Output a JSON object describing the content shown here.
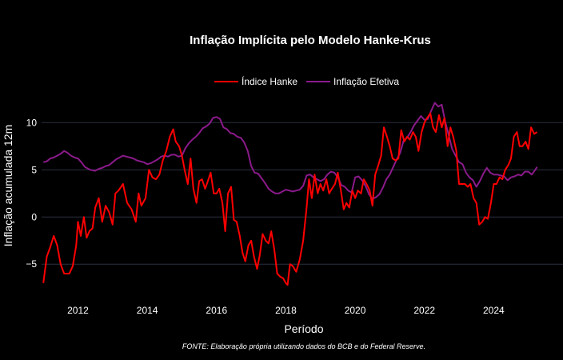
{
  "chart_data": {
    "type": "line",
    "title": "Inflação Implícita pelo Modelo Hanke-Krus",
    "xlabel": "Período",
    "ylabel": "Inflação acumulada  12m",
    "source_note": "FONTE: Elaboração própria utilizando dados do BCB e do Federal Reserve.",
    "xlim": [
      2010.95,
      2026.0
    ],
    "ylim": [
      -8.2,
      13.5
    ],
    "x_ticks": [
      2012,
      2014,
      2016,
      2018,
      2020,
      2022,
      2024
    ],
    "y_ticks": [
      -5,
      0,
      5,
      10
    ],
    "x_tick_labels": [
      "2012",
      "2014",
      "2016",
      "2018",
      "2020",
      "2022",
      "2024"
    ],
    "y_tick_labels": [
      "−5",
      "0",
      "5",
      "10"
    ],
    "grid": true,
    "legend_position": "top-center",
    "series": [
      {
        "name": "Índice Hanke",
        "color": "#ff0000",
        "points": [
          [
            2011.0,
            -7.0
          ],
          [
            2011.1,
            -4.2
          ],
          [
            2011.2,
            -3.2
          ],
          [
            2011.3,
            -2.0
          ],
          [
            2011.4,
            -3.0
          ],
          [
            2011.5,
            -5.0
          ],
          [
            2011.6,
            -6.0
          ],
          [
            2011.75,
            -6.0
          ],
          [
            2011.85,
            -5.2
          ],
          [
            2011.95,
            -3.0
          ],
          [
            2012.0,
            -0.5
          ],
          [
            2012.08,
            -2.0
          ],
          [
            2012.17,
            0.0
          ],
          [
            2012.25,
            -2.2
          ],
          [
            2012.33,
            -1.5
          ],
          [
            2012.42,
            -1.2
          ],
          [
            2012.5,
            1.0
          ],
          [
            2012.6,
            2.0
          ],
          [
            2012.7,
            -0.5
          ],
          [
            2012.8,
            1.2
          ],
          [
            2012.9,
            0.5
          ],
          [
            2013.0,
            -0.8
          ],
          [
            2013.08,
            2.5
          ],
          [
            2013.17,
            2.8
          ],
          [
            2013.3,
            3.5
          ],
          [
            2013.42,
            1.5
          ],
          [
            2013.55,
            0.8
          ],
          [
            2013.67,
            -0.5
          ],
          [
            2013.75,
            2.5
          ],
          [
            2013.83,
            1.2
          ],
          [
            2013.95,
            2.0
          ],
          [
            2014.05,
            5.0
          ],
          [
            2014.15,
            4.2
          ],
          [
            2014.25,
            4.0
          ],
          [
            2014.35,
            4.5
          ],
          [
            2014.45,
            6.0
          ],
          [
            2014.55,
            7.0
          ],
          [
            2014.65,
            8.5
          ],
          [
            2014.75,
            9.3
          ],
          [
            2014.82,
            8.0
          ],
          [
            2014.92,
            7.5
          ],
          [
            2015.0,
            6.5
          ],
          [
            2015.08,
            5.0
          ],
          [
            2015.17,
            3.5
          ],
          [
            2015.25,
            6.2
          ],
          [
            2015.33,
            3.0
          ],
          [
            2015.42,
            1.5
          ],
          [
            2015.5,
            3.8
          ],
          [
            2015.58,
            4.0
          ],
          [
            2015.67,
            3.0
          ],
          [
            2015.75,
            3.8
          ],
          [
            2015.83,
            4.7
          ],
          [
            2015.92,
            2.5
          ],
          [
            2016.0,
            2.5
          ],
          [
            2016.08,
            3.0
          ],
          [
            2016.17,
            1.5
          ],
          [
            2016.25,
            -1.5
          ],
          [
            2016.33,
            2.5
          ],
          [
            2016.42,
            3.2
          ],
          [
            2016.5,
            -0.3
          ],
          [
            2016.58,
            -0.5
          ],
          [
            2016.67,
            -2.0
          ],
          [
            2016.75,
            -3.8
          ],
          [
            2016.83,
            -4.7
          ],
          [
            2016.92,
            -3.0
          ],
          [
            2017.0,
            -2.5
          ],
          [
            2017.08,
            -4.2
          ],
          [
            2017.17,
            -5.5
          ],
          [
            2017.25,
            -4.0
          ],
          [
            2017.33,
            -1.8
          ],
          [
            2017.42,
            -2.5
          ],
          [
            2017.5,
            -2.8
          ],
          [
            2017.58,
            -1.5
          ],
          [
            2017.67,
            -3.5
          ],
          [
            2017.75,
            -6.0
          ],
          [
            2017.83,
            -6.3
          ],
          [
            2017.92,
            -6.5
          ],
          [
            2018.0,
            -7.0
          ],
          [
            2018.05,
            -7.2
          ],
          [
            2018.12,
            -5.0
          ],
          [
            2018.2,
            -5.2
          ],
          [
            2018.3,
            -5.8
          ],
          [
            2018.4,
            -4.5
          ],
          [
            2018.5,
            -2.5
          ],
          [
            2018.6,
            1.0
          ],
          [
            2018.67,
            4.0
          ],
          [
            2018.75,
            2.0
          ],
          [
            2018.83,
            4.5
          ],
          [
            2018.92,
            2.5
          ],
          [
            2019.0,
            3.5
          ],
          [
            2019.08,
            2.8
          ],
          [
            2019.17,
            4.0
          ],
          [
            2019.25,
            2.5
          ],
          [
            2019.33,
            3.0
          ],
          [
            2019.42,
            3.5
          ],
          [
            2019.5,
            4.7
          ],
          [
            2019.58,
            3.0
          ],
          [
            2019.67,
            0.8
          ],
          [
            2019.75,
            1.5
          ],
          [
            2019.83,
            1.0
          ],
          [
            2019.92,
            2.8
          ],
          [
            2020.0,
            2.0
          ],
          [
            2020.08,
            2.8
          ],
          [
            2020.17,
            2.5
          ],
          [
            2020.25,
            4.0
          ],
          [
            2020.33,
            3.5
          ],
          [
            2020.42,
            2.8
          ],
          [
            2020.5,
            1.2
          ],
          [
            2020.58,
            4.5
          ],
          [
            2020.67,
            5.5
          ],
          [
            2020.75,
            6.5
          ],
          [
            2020.83,
            9.5
          ],
          [
            2020.92,
            8.5
          ],
          [
            2021.0,
            7.5
          ],
          [
            2021.08,
            6.2
          ],
          [
            2021.17,
            6.0
          ],
          [
            2021.25,
            6.2
          ],
          [
            2021.33,
            9.2
          ],
          [
            2021.42,
            8.0
          ],
          [
            2021.5,
            8.5
          ],
          [
            2021.58,
            8.2
          ],
          [
            2021.67,
            9.0
          ],
          [
            2021.75,
            8.5
          ],
          [
            2021.83,
            7.0
          ],
          [
            2021.92,
            9.0
          ],
          [
            2022.0,
            10.0
          ],
          [
            2022.08,
            10.5
          ],
          [
            2022.17,
            11.0
          ],
          [
            2022.25,
            9.5
          ],
          [
            2022.33,
            9.0
          ],
          [
            2022.42,
            10.8
          ],
          [
            2022.5,
            9.5
          ],
          [
            2022.58,
            10.5
          ],
          [
            2022.67,
            7.5
          ],
          [
            2022.75,
            9.5
          ],
          [
            2022.83,
            8.5
          ],
          [
            2022.92,
            7.0
          ],
          [
            2023.0,
            3.5
          ],
          [
            2023.08,
            3.5
          ],
          [
            2023.17,
            3.5
          ],
          [
            2023.25,
            3.2
          ],
          [
            2023.33,
            3.5
          ],
          [
            2023.42,
            2.0
          ],
          [
            2023.5,
            1.5
          ],
          [
            2023.58,
            -0.8
          ],
          [
            2023.67,
            -0.5
          ],
          [
            2023.75,
            0.0
          ],
          [
            2023.83,
            -0.2
          ],
          [
            2023.92,
            1.5
          ],
          [
            2024.0,
            3.5
          ],
          [
            2024.08,
            3.5
          ],
          [
            2024.17,
            4.2
          ],
          [
            2024.25,
            4.0
          ],
          [
            2024.33,
            5.0
          ],
          [
            2024.42,
            5.5
          ],
          [
            2024.5,
            6.2
          ],
          [
            2024.58,
            8.5
          ],
          [
            2024.67,
            9.0
          ],
          [
            2024.75,
            7.5
          ],
          [
            2024.83,
            7.5
          ],
          [
            2024.92,
            8.0
          ],
          [
            2025.0,
            7.2
          ],
          [
            2025.08,
            9.5
          ],
          [
            2025.17,
            8.8
          ],
          [
            2025.25,
            9.0
          ]
        ]
      },
      {
        "name": "Inflação Efetiva",
        "color": "#8b1a8b",
        "points": [
          [
            2011.0,
            5.8
          ],
          [
            2011.1,
            5.9
          ],
          [
            2011.2,
            6.2
          ],
          [
            2011.3,
            6.3
          ],
          [
            2011.4,
            6.5
          ],
          [
            2011.5,
            6.7
          ],
          [
            2011.6,
            7.0
          ],
          [
            2011.7,
            6.8
          ],
          [
            2011.8,
            6.5
          ],
          [
            2011.9,
            6.3
          ],
          [
            2012.0,
            6.2
          ],
          [
            2012.1,
            5.8
          ],
          [
            2012.2,
            5.3
          ],
          [
            2012.35,
            5.0
          ],
          [
            2012.5,
            4.9
          ],
          [
            2012.6,
            5.1
          ],
          [
            2012.7,
            5.2
          ],
          [
            2012.8,
            5.4
          ],
          [
            2012.9,
            5.5
          ],
          [
            2013.0,
            5.8
          ],
          [
            2013.1,
            6.1
          ],
          [
            2013.2,
            6.3
          ],
          [
            2013.3,
            6.5
          ],
          [
            2013.4,
            6.4
          ],
          [
            2013.5,
            6.3
          ],
          [
            2013.6,
            6.2
          ],
          [
            2013.7,
            6.0
          ],
          [
            2013.8,
            5.9
          ],
          [
            2013.9,
            5.8
          ],
          [
            2014.0,
            5.6
          ],
          [
            2014.1,
            5.7
          ],
          [
            2014.2,
            5.9
          ],
          [
            2014.3,
            6.1
          ],
          [
            2014.4,
            6.4
          ],
          [
            2014.5,
            6.5
          ],
          [
            2014.6,
            6.4
          ],
          [
            2014.7,
            6.6
          ],
          [
            2014.8,
            6.6
          ],
          [
            2014.9,
            6.4
          ],
          [
            2015.0,
            6.5
          ],
          [
            2015.1,
            7.3
          ],
          [
            2015.2,
            7.8
          ],
          [
            2015.3,
            8.2
          ],
          [
            2015.4,
            8.5
          ],
          [
            2015.5,
            8.9
          ],
          [
            2015.6,
            9.4
          ],
          [
            2015.7,
            9.6
          ],
          [
            2015.8,
            9.9
          ],
          [
            2015.9,
            10.5
          ],
          [
            2016.0,
            10.6
          ],
          [
            2016.1,
            10.4
          ],
          [
            2016.2,
            9.5
          ],
          [
            2016.3,
            9.3
          ],
          [
            2016.4,
            8.9
          ],
          [
            2016.5,
            8.8
          ],
          [
            2016.6,
            8.5
          ],
          [
            2016.7,
            8.4
          ],
          [
            2016.8,
            7.9
          ],
          [
            2016.9,
            7.0
          ],
          [
            2017.0,
            5.4
          ],
          [
            2017.1,
            4.7
          ],
          [
            2017.2,
            4.6
          ],
          [
            2017.3,
            4.1
          ],
          [
            2017.4,
            3.6
          ],
          [
            2017.5,
            3.0
          ],
          [
            2017.6,
            2.7
          ],
          [
            2017.7,
            2.5
          ],
          [
            2017.8,
            2.5
          ],
          [
            2017.9,
            2.7
          ],
          [
            2018.0,
            2.9
          ],
          [
            2018.1,
            2.8
          ],
          [
            2018.2,
            2.7
          ],
          [
            2018.3,
            2.8
          ],
          [
            2018.4,
            2.9
          ],
          [
            2018.5,
            3.3
          ],
          [
            2018.6,
            4.4
          ],
          [
            2018.7,
            4.5
          ],
          [
            2018.8,
            4.2
          ],
          [
            2018.9,
            4.0
          ],
          [
            2019.0,
            3.8
          ],
          [
            2019.1,
            4.0
          ],
          [
            2019.2,
            4.5
          ],
          [
            2019.3,
            4.8
          ],
          [
            2019.4,
            4.7
          ],
          [
            2019.5,
            4.2
          ],
          [
            2019.6,
            3.4
          ],
          [
            2019.7,
            3.2
          ],
          [
            2019.8,
            2.8
          ],
          [
            2019.9,
            2.6
          ],
          [
            2020.0,
            4.2
          ],
          [
            2020.1,
            4.3
          ],
          [
            2020.2,
            3.9
          ],
          [
            2020.3,
            3.3
          ],
          [
            2020.4,
            2.4
          ],
          [
            2020.5,
            1.9
          ],
          [
            2020.6,
            2.1
          ],
          [
            2020.7,
            2.4
          ],
          [
            2020.8,
            3.1
          ],
          [
            2020.9,
            4.0
          ],
          [
            2021.0,
            4.5
          ],
          [
            2021.1,
            5.3
          ],
          [
            2021.2,
            6.1
          ],
          [
            2021.3,
            6.8
          ],
          [
            2021.4,
            8.1
          ],
          [
            2021.5,
            8.4
          ],
          [
            2021.6,
            9.0
          ],
          [
            2021.7,
            9.7
          ],
          [
            2021.8,
            10.2
          ],
          [
            2021.9,
            10.7
          ],
          [
            2022.0,
            10.3
          ],
          [
            2022.1,
            10.4
          ],
          [
            2022.2,
            11.3
          ],
          [
            2022.3,
            12.1
          ],
          [
            2022.4,
            11.7
          ],
          [
            2022.5,
            11.9
          ],
          [
            2022.6,
            10.1
          ],
          [
            2022.7,
            8.7
          ],
          [
            2022.8,
            7.2
          ],
          [
            2022.9,
            6.5
          ],
          [
            2023.0,
            5.8
          ],
          [
            2023.1,
            5.6
          ],
          [
            2023.2,
            4.7
          ],
          [
            2023.3,
            4.2
          ],
          [
            2023.4,
            3.9
          ],
          [
            2023.5,
            3.2
          ],
          [
            2023.6,
            3.8
          ],
          [
            2023.7,
            4.6
          ],
          [
            2023.8,
            5.2
          ],
          [
            2023.9,
            4.7
          ],
          [
            2024.0,
            4.5
          ],
          [
            2024.1,
            4.5
          ],
          [
            2024.2,
            4.4
          ],
          [
            2024.3,
            4.3
          ],
          [
            2024.4,
            3.9
          ],
          [
            2024.5,
            4.2
          ],
          [
            2024.6,
            4.3
          ],
          [
            2024.7,
            4.5
          ],
          [
            2024.8,
            4.4
          ],
          [
            2024.9,
            4.8
          ],
          [
            2025.0,
            4.8
          ],
          [
            2025.1,
            4.5
          ],
          [
            2025.2,
            5.0
          ],
          [
            2025.25,
            5.3
          ]
        ]
      }
    ]
  }
}
